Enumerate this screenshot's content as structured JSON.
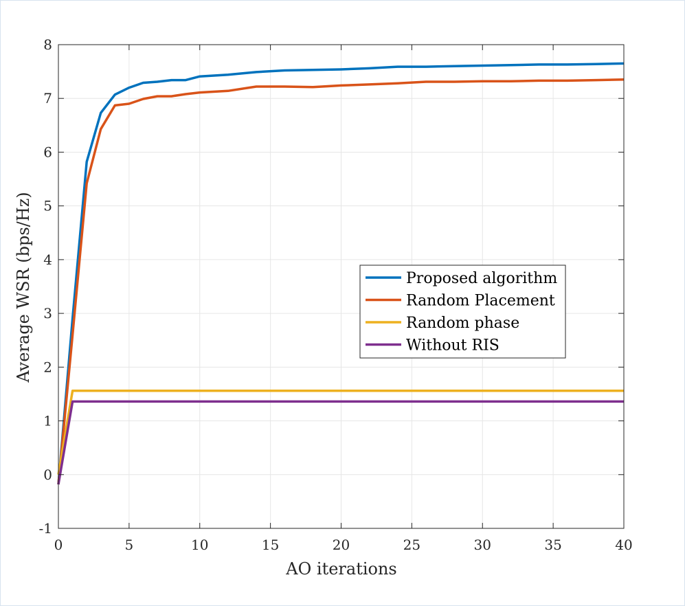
{
  "chart_data": {
    "type": "line",
    "title": "",
    "xlabel": "AO iterations",
    "ylabel": "Average WSR (bps/Hz)",
    "xlim": [
      0,
      40
    ],
    "ylim": [
      -1,
      8
    ],
    "xticks": [
      0,
      5,
      10,
      15,
      20,
      25,
      30,
      35,
      40
    ],
    "yticks": [
      -1,
      0,
      1,
      2,
      3,
      4,
      5,
      6,
      7,
      8
    ],
    "grid": true,
    "legend_position": "center-right",
    "series": [
      {
        "name": "Proposed algorithm",
        "color": "#0072BD",
        "x": [
          0,
          1,
          2,
          3,
          4,
          5,
          6,
          7,
          8,
          9,
          10,
          12,
          14,
          16,
          18,
          20,
          22,
          24,
          26,
          28,
          30,
          32,
          34,
          36,
          38,
          40
        ],
        "y": [
          -0.18,
          2.9,
          5.82,
          6.73,
          7.07,
          7.2,
          7.29,
          7.31,
          7.34,
          7.34,
          7.41,
          7.44,
          7.49,
          7.52,
          7.53,
          7.54,
          7.56,
          7.59,
          7.59,
          7.6,
          7.61,
          7.62,
          7.63,
          7.63,
          7.64,
          7.65
        ]
      },
      {
        "name": "Random Placement",
        "color": "#D95319",
        "x": [
          0,
          1,
          2,
          3,
          4,
          5,
          6,
          7,
          8,
          9,
          10,
          12,
          14,
          16,
          18,
          20,
          22,
          24,
          26,
          28,
          30,
          32,
          34,
          36,
          38,
          40
        ],
        "y": [
          -0.18,
          2.6,
          5.42,
          6.43,
          6.87,
          6.9,
          6.99,
          7.04,
          7.04,
          7.08,
          7.11,
          7.14,
          7.22,
          7.22,
          7.21,
          7.24,
          7.26,
          7.28,
          7.31,
          7.31,
          7.32,
          7.32,
          7.33,
          7.33,
          7.34,
          7.35
        ]
      },
      {
        "name": "Random phase",
        "color": "#EDB120",
        "x": [
          0,
          1,
          40
        ],
        "y": [
          0.0,
          1.56,
          1.56
        ]
      },
      {
        "name": "Without RIS",
        "color": "#7E2F8E",
        "x": [
          0,
          1,
          40
        ],
        "y": [
          -0.18,
          1.36,
          1.36
        ]
      }
    ]
  }
}
